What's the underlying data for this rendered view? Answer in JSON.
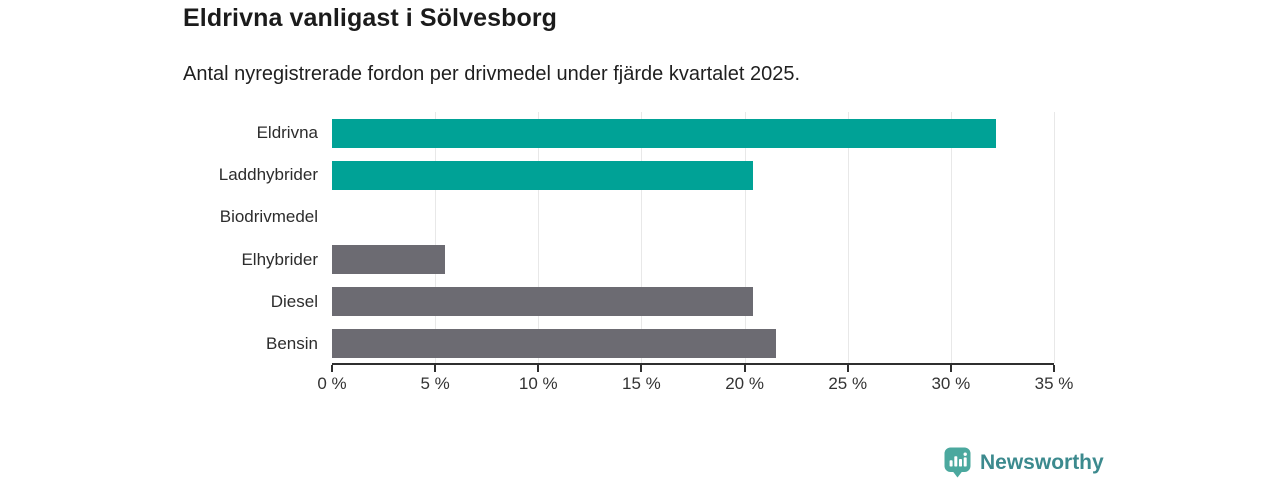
{
  "header": {
    "title": "Eldrivna vanligast i Sölvesborg",
    "subtitle": "Antal nyregistrerade fordon per drivmedel under fjärde kvartalet 2025."
  },
  "chart_data": {
    "type": "bar",
    "orientation": "horizontal",
    "title": "Eldrivna vanligast i Sölvesborg",
    "subtitle": "Antal nyregistrerade fordon per drivmedel under fjärde kvartalet 2025.",
    "categories": [
      "Eldrivna",
      "Laddhybrider",
      "Biodrivmedel",
      "Elhybrider",
      "Diesel",
      "Bensin"
    ],
    "values": [
      32.2,
      20.4,
      0,
      5.5,
      20.4,
      21.5
    ],
    "unit": "%",
    "bar_colors": [
      "#00a296",
      "#00a296",
      "#6c6b72",
      "#6c6b72",
      "#6c6b72",
      "#6c6b72"
    ],
    "xlim": [
      0,
      35
    ],
    "x_ticks": [
      0,
      5,
      10,
      15,
      20,
      25,
      30,
      35
    ],
    "x_tick_labels": [
      "0 %",
      "5 %",
      "10 %",
      "15 %",
      "20 %",
      "25 %",
      "30 %",
      "35 %"
    ],
    "xlabel": "",
    "ylabel": "",
    "grid": "vertical-only",
    "legend": "none"
  },
  "footer": {
    "brand": "Newsworthy",
    "logo_icon": "bar-chart-pin-icon",
    "brand_text_color": "#3c8a8e",
    "icon_color": "#4ba89e"
  },
  "colors": {
    "accent_teal": "#00a296",
    "neutral_gray": "#6c6b72",
    "axis": "#2f2f2f",
    "gridline": "#e8e8e8",
    "background": "#ffffff"
  }
}
